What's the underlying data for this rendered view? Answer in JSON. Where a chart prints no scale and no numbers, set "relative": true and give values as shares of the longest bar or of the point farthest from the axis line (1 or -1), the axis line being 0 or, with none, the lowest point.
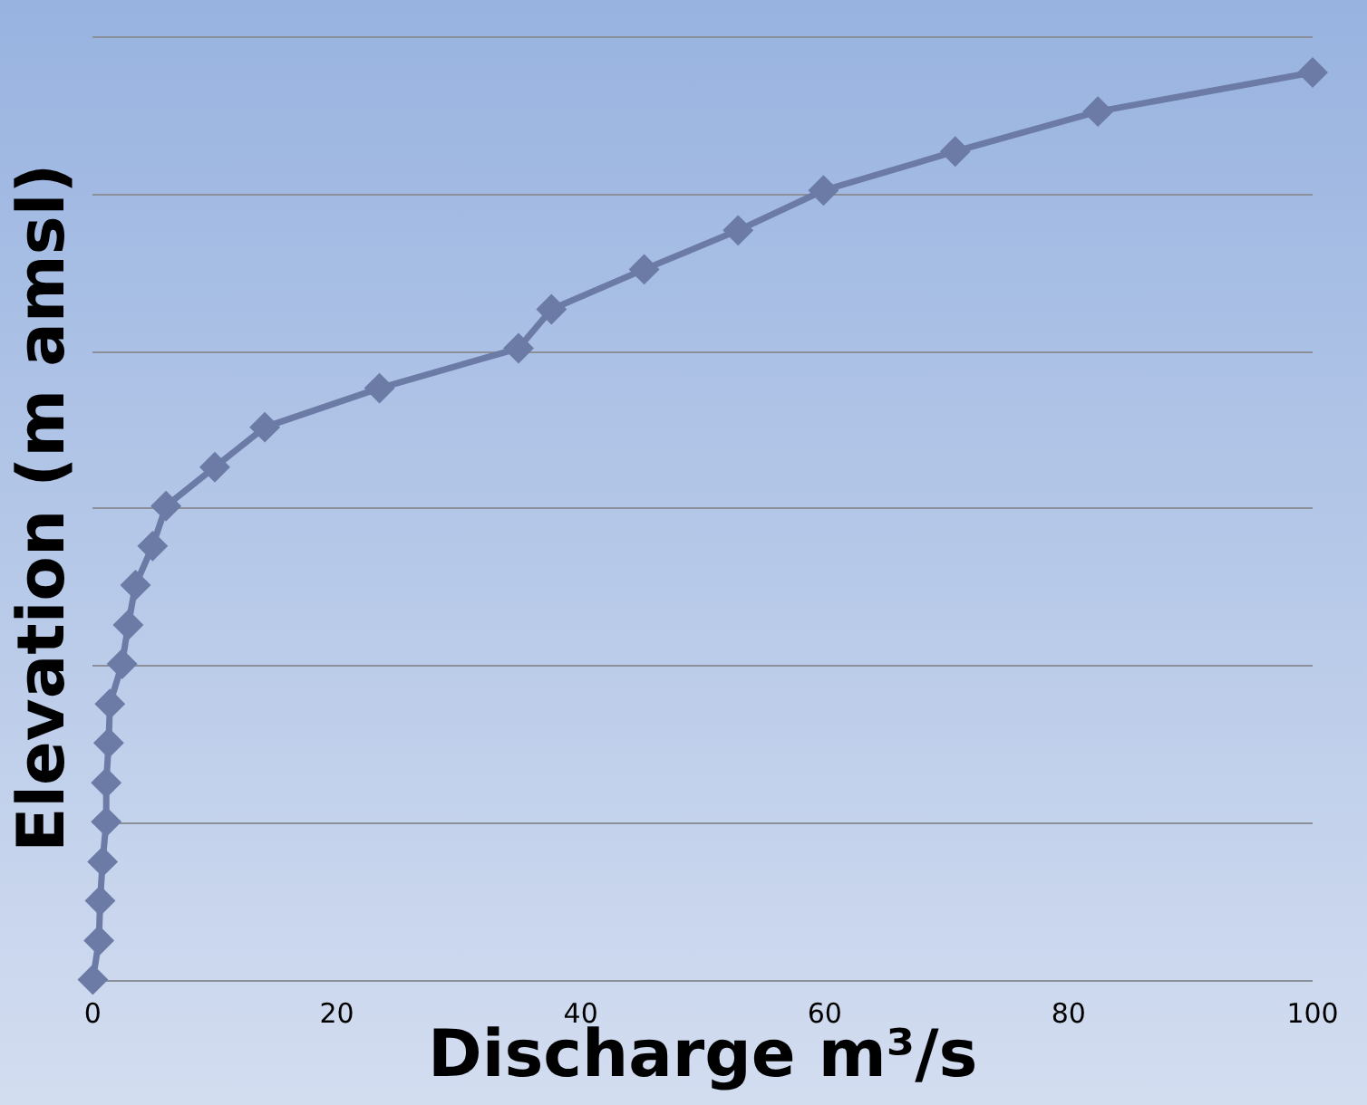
{
  "chart_data": {
    "type": "line",
    "relative": true,
    "xlabel": "Discharge m³/s",
    "ylabel": "Elevation (m amsl)",
    "x": [
      0,
      0.5,
      0.6,
      0.8,
      1.1,
      1.1,
      1.3,
      1.4,
      2.4,
      2.9,
      3.5,
      4.9,
      6.0,
      10.0,
      14.1,
      23.5,
      34.9,
      37.6,
      45.2,
      52.9,
      59.9,
      70.7,
      82.4,
      100
    ],
    "values": [
      0,
      0.043,
      0.087,
      0.13,
      0.174,
      0.217,
      0.261,
      0.304,
      0.348,
      0.391,
      0.435,
      0.478,
      0.522,
      0.565,
      0.609,
      0.652,
      0.696,
      0.739,
      0.783,
      0.826,
      0.87,
      0.913,
      0.957,
      1
    ],
    "color": "#6b7ba6",
    "xlim": [
      0,
      100
    ],
    "xticks": [
      0,
      20,
      40,
      60,
      80,
      100
    ],
    "marker": "diamond",
    "line_style": "solid",
    "legend": false
  }
}
